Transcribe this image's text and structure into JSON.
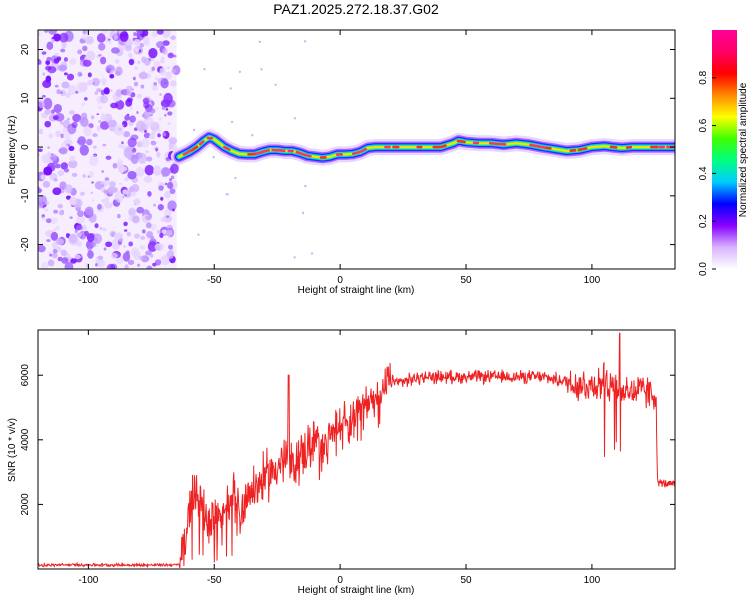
{
  "title": "PAZ1.2025.272.18.37.G02",
  "chart_data": [
    {
      "type": "heatmap",
      "name": "spectrogram",
      "xlabel": "Height of straight line (km)",
      "ylabel": "Frequency (Hz)",
      "xlim": [
        -120,
        133
      ],
      "ylim": [
        -25,
        24
      ],
      "xticks": [
        -100,
        -50,
        0,
        50,
        100
      ],
      "yticks": [
        -20,
        -10,
        0,
        10,
        20
      ],
      "colorbar": {
        "label": "Normalized spectral amplitude",
        "range": [
          0,
          1
        ],
        "ticks": [
          0.0,
          0.2,
          0.4,
          0.6,
          0.8
        ],
        "stops": [
          "#ffffff",
          "#d9b3ff",
          "#8800ff",
          "#0000ff",
          "#00ccff",
          "#00ff80",
          "#40ff00",
          "#ffff00",
          "#ff8800",
          "#ff0000",
          "#ff0066",
          "#ff0099"
        ]
      },
      "noise_region_km": [
        -120,
        -65
      ],
      "ridge": {
        "x": [
          -64,
          -60,
          -57,
          -54,
          -52,
          -50,
          -48,
          -46,
          -43,
          -40,
          -37,
          -34,
          -31,
          -28,
          -25,
          -22,
          -19,
          -16,
          -13,
          -10,
          -7,
          -4,
          -1,
          2,
          5,
          8,
          11,
          14,
          17,
          20,
          25,
          30,
          35,
          40,
          45,
          47,
          50,
          55,
          60,
          65,
          70,
          75,
          80,
          85,
          90,
          95,
          100,
          105,
          108,
          112,
          116,
          120,
          125,
          133
        ],
        "y": [
          -2.0,
          -1.0,
          0.0,
          1.3,
          2.0,
          1.6,
          0.8,
          0.0,
          -0.8,
          -1.4,
          -1.5,
          -1.5,
          -1.0,
          -0.6,
          -0.6,
          -0.8,
          -0.8,
          -1.2,
          -1.8,
          -2.0,
          -2.2,
          -2.0,
          -1.5,
          -1.5,
          -1.4,
          -1.0,
          -0.2,
          0.0,
          0.0,
          0.0,
          0.0,
          0.0,
          0.0,
          0.0,
          0.8,
          1.3,
          1.0,
          0.8,
          0.8,
          0.5,
          0.8,
          0.5,
          0.0,
          -0.4,
          -0.8,
          -0.6,
          0.0,
          0.2,
          0.0,
          -0.2,
          0.0,
          0.0,
          0.0,
          0.0
        ]
      }
    },
    {
      "type": "line",
      "name": "snr",
      "xlabel": "Height of straight line (km)",
      "ylabel": "SNR (10 * v/v)",
      "xlim": [
        -120,
        133
      ],
      "ylim": [
        0,
        7400
      ],
      "xticks": [
        -100,
        -50,
        0,
        50,
        100
      ],
      "yticks": [
        2000,
        4000,
        6000
      ],
      "color": "#ee2222",
      "series": [
        {
          "name": "SNR",
          "x": [
            -120,
            -100,
            -80,
            -64,
            -61,
            -59,
            -57,
            -55,
            -53,
            -50,
            -48,
            -45,
            -42,
            -40,
            -37,
            -34,
            -30,
            -25,
            -21,
            -20,
            -19,
            -15,
            -10,
            -5,
            0,
            5,
            10,
            15,
            20,
            25,
            30,
            35,
            40,
            50,
            60,
            70,
            80,
            90,
            95,
            100,
            105,
            108,
            110,
            112,
            115,
            118,
            121,
            124,
            125.5,
            126,
            128,
            133
          ],
          "y": [
            120,
            130,
            120,
            130,
            1000,
            2300,
            2600,
            2000,
            1500,
            1700,
            1500,
            2000,
            2300,
            1600,
            2400,
            2500,
            2800,
            3200,
            3400,
            3300,
            3100,
            3600,
            3900,
            4100,
            4500,
            4800,
            5100,
            5400,
            5800,
            5800,
            5900,
            5950,
            5950,
            5950,
            5950,
            5950,
            5950,
            5800,
            5700,
            5700,
            5800,
            5800,
            5600,
            5500,
            5500,
            5500,
            5500,
            5400,
            5400,
            2700,
            2650,
            2600
          ]
        }
      ],
      "annotations": [
        {
          "x": -20.5,
          "y": 6000,
          "note": "spike"
        },
        {
          "x": 111,
          "y": 7300,
          "note": "peak"
        }
      ]
    }
  ]
}
